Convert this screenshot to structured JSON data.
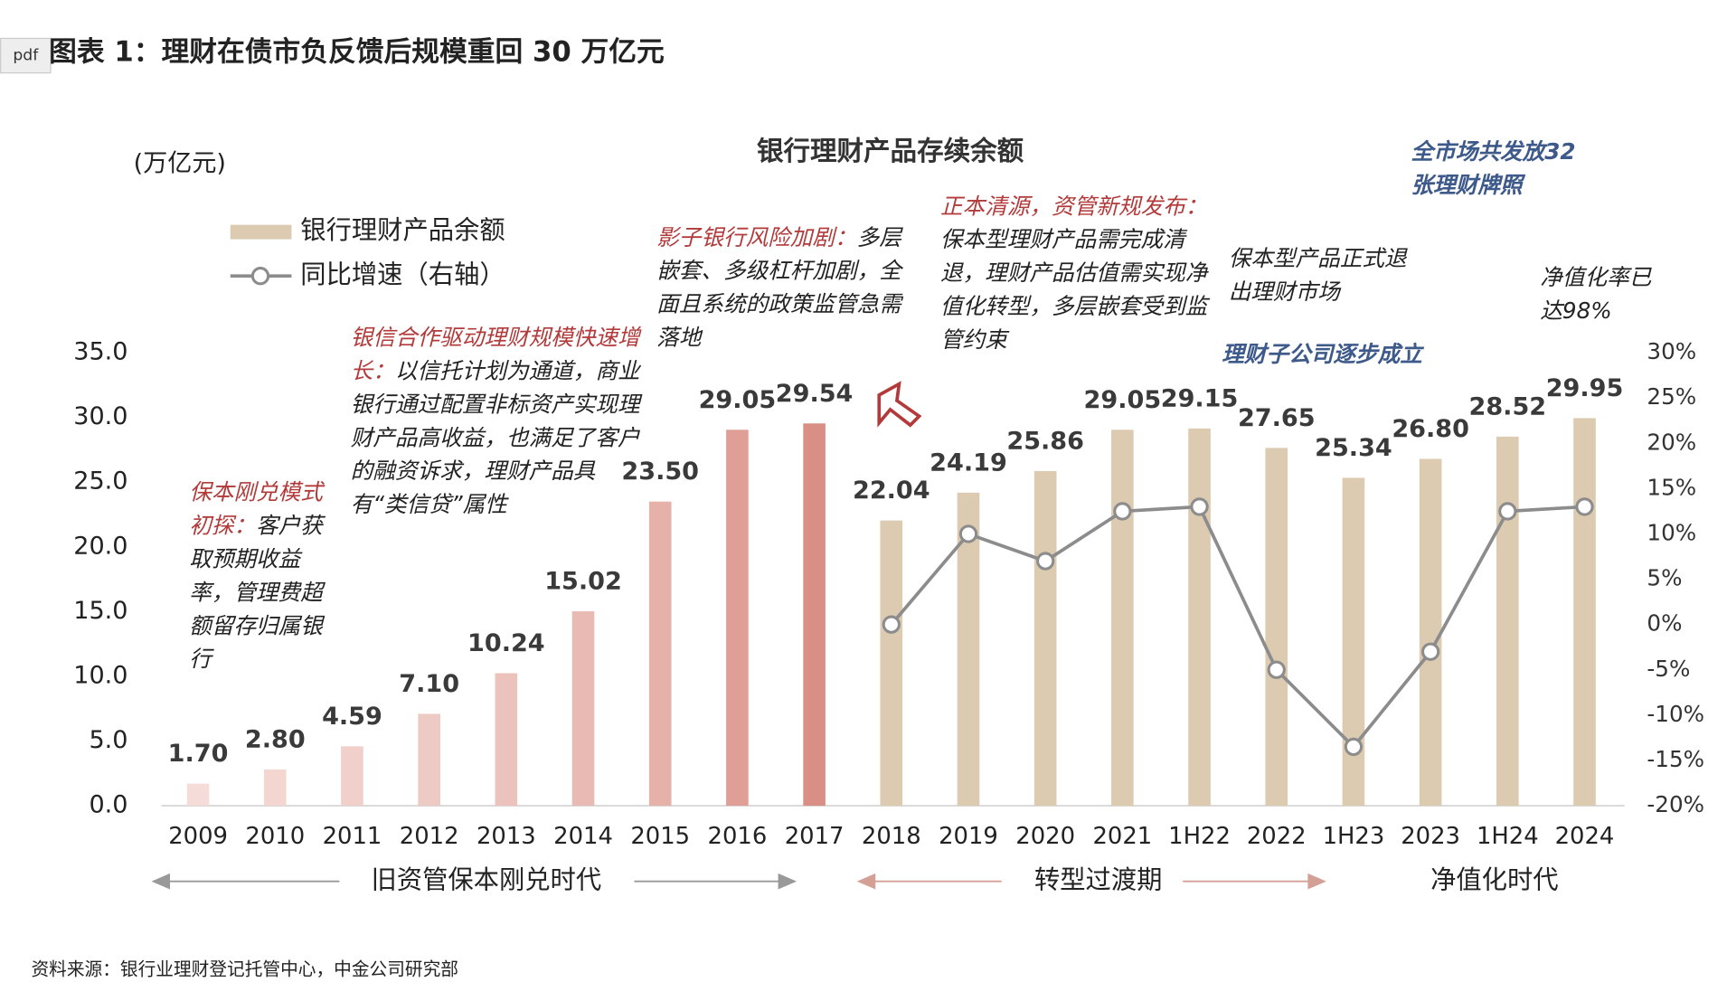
{
  "header": {
    "title": "图表 1：理财在债市负反馈后规模重回 30 万亿元",
    "button": "pdf"
  },
  "source": "资料来源：银行业理财登记托管中心，中金公司研究部",
  "chart_data": {
    "type": "bar",
    "title": "银行理财产品存续余额",
    "y_label": "(万亿元)",
    "categories": [
      "2009",
      "2010",
      "2011",
      "2012",
      "2013",
      "2014",
      "2015",
      "2016",
      "2017",
      "2018",
      "2019",
      "2020",
      "2021",
      "1H22",
      "2022",
      "1H23",
      "2023",
      "1H24",
      "2024"
    ],
    "series": [
      {
        "name": "银行理财产品余额",
        "color": "#dccbb0",
        "colors": [
          "#f6dcd8",
          "#f4d6d1",
          "#f1cfca",
          "#eecac4",
          "#ebc2bc",
          "#e8bab3",
          "#e5b1a9",
          "#df9f96",
          "#d98f86",
          "#dccbb0",
          "#dccbb0",
          "#dccbb0",
          "#dccbb0",
          "#dccbb0",
          "#dccbb0",
          "#dccbb0",
          "#dccbb0",
          "#dccbb0",
          "#dccbb0"
        ],
        "values": [
          1.7,
          2.8,
          4.59,
          7.1,
          10.24,
          15.02,
          23.5,
          29.05,
          29.54,
          22.04,
          24.19,
          25.86,
          29.05,
          29.15,
          27.65,
          25.34,
          26.8,
          28.52,
          29.95
        ],
        "value_labels": [
          "1.70",
          "2.80",
          "4.59",
          "7.10",
          "10.24",
          "15.02",
          "23.50",
          "29.05",
          "29.54",
          "22.04",
          "24.19",
          "25.86",
          "29.05",
          "29.15",
          "27.65",
          "25.34",
          "26.80",
          "28.52",
          "29.95"
        ]
      },
      {
        "name": "同比增速（右轴）",
        "type": "line",
        "axis": "y2",
        "color": "#8c8c8c",
        "values": [
          null,
          null,
          null,
          null,
          null,
          null,
          null,
          null,
          null,
          0,
          10,
          7,
          12.5,
          13,
          -5,
          -13.5,
          -3,
          12.5,
          13
        ]
      }
    ],
    "ylim": [
      0,
      35
    ],
    "yticks": [
      {
        "value": 0,
        "label": "0.0"
      },
      {
        "value": 5,
        "label": "5.0"
      },
      {
        "value": 10,
        "label": "10.0"
      },
      {
        "value": 15,
        "label": "15.0"
      },
      {
        "value": 20,
        "label": "20.0"
      },
      {
        "value": 25,
        "label": "25.0"
      },
      {
        "value": 30,
        "label": "30.0"
      },
      {
        "value": 35,
        "label": "35.0"
      }
    ],
    "y2lim": [
      -20,
      30
    ],
    "y2ticks": [
      {
        "value": -20,
        "label": "-20%"
      },
      {
        "value": -15,
        "label": "-15%"
      },
      {
        "value": -10,
        "label": "-10%"
      },
      {
        "value": -5,
        "label": "-5%"
      },
      {
        "value": 0,
        "label": "0%"
      },
      {
        "value": 5,
        "label": "5%"
      },
      {
        "value": 10,
        "label": "10%"
      },
      {
        "value": 15,
        "label": "15%"
      },
      {
        "value": 20,
        "label": "20%"
      },
      {
        "value": 25,
        "label": "25%"
      },
      {
        "value": 30,
        "label": "30%"
      }
    ],
    "annotations": [
      {
        "heading": "保本刚兑模式初探：",
        "body": "客户获取预期收益率，管理费超额留存归属银行"
      },
      {
        "heading": "银信合作驱动理财规模快速增长：",
        "body": "以信托计划为通道，商业银行通过配置非标资产实现理财产品高收益，也满足了客户的融资诉求，理财产品具有“类信贷”属性"
      },
      {
        "heading": "影子银行风险加剧：",
        "body": "多层嵌套、多级杠杆加剧，全面且系统的政策监管急需落地"
      },
      {
        "heading": "正本清源，资管新规发布：",
        "body": "保本型理财产品需完成清退，理财产品估值需实现净值化转型，多层嵌套受到监管约束"
      },
      {
        "body": "保本型产品正式退出理财市场"
      },
      {
        "body": "理财子公司逐步成立",
        "color": "#3d5a8a"
      },
      {
        "body": "全市场共发放32张理财牌照",
        "color": "#3d5a8a"
      },
      {
        "body": "净值化率已达98%"
      }
    ],
    "periods": [
      "旧资管保本刚兑时代",
      "转型过渡期",
      "净值化时代"
    ]
  }
}
